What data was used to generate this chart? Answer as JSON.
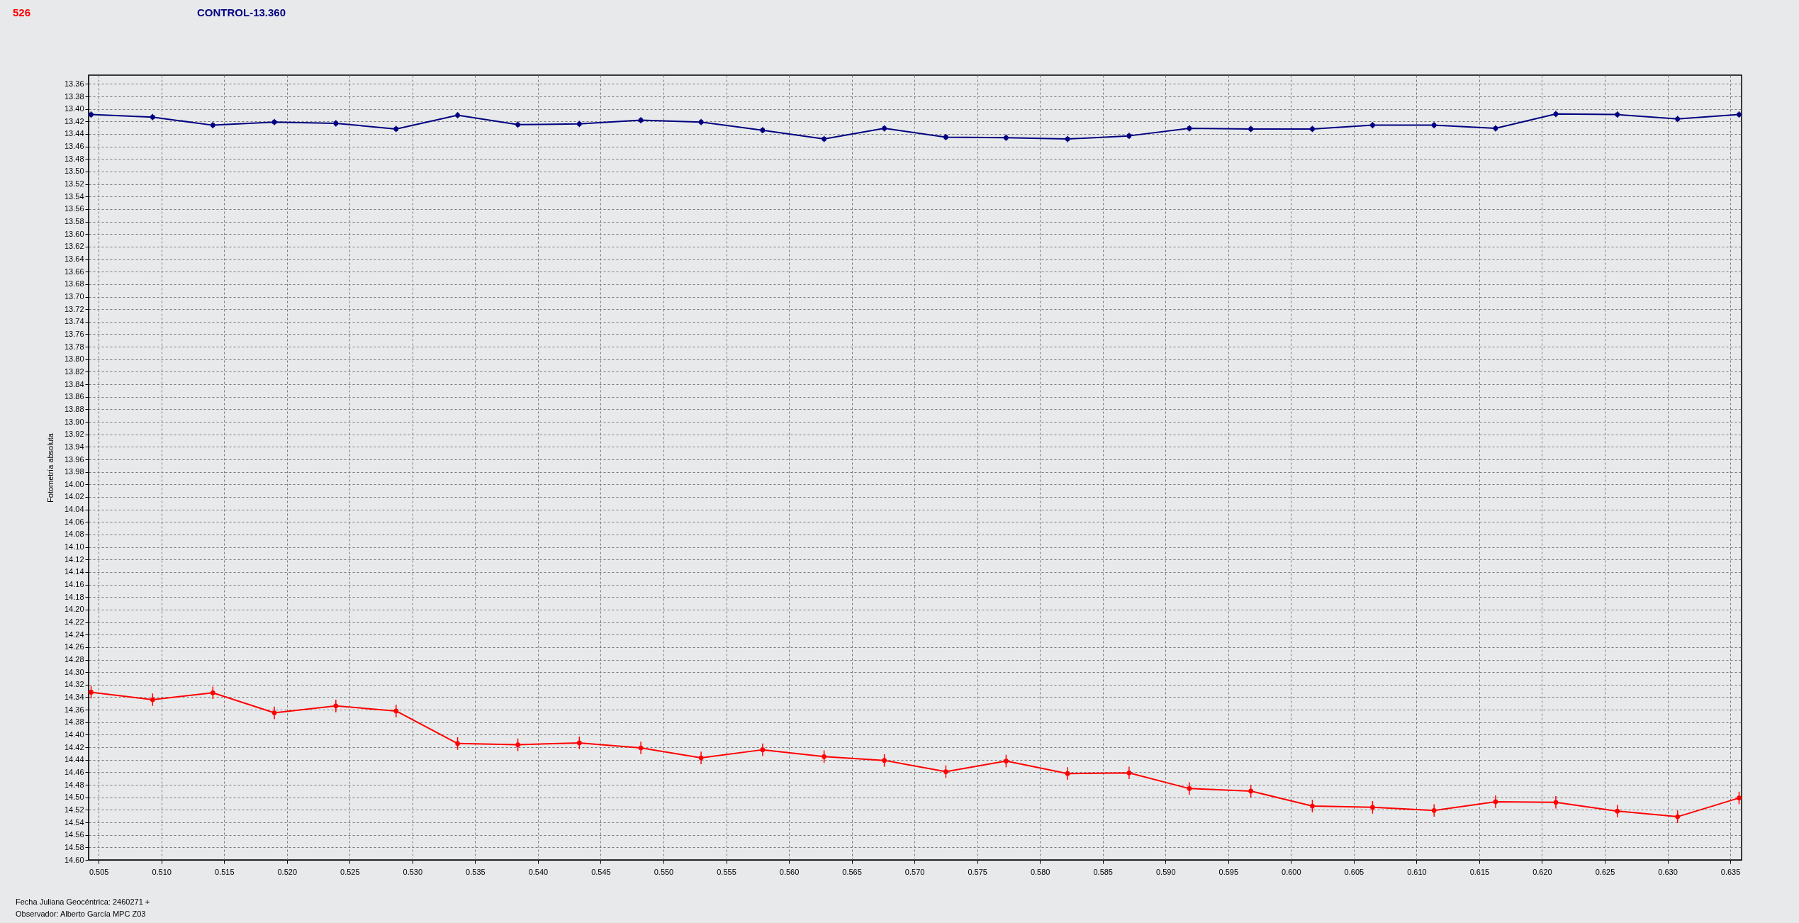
{
  "chart_data": {
    "type": "line",
    "ylabel": "Fotometría absoluta",
    "xlabel": "Fecha Juliana Geocéntrica: 2460271 +",
    "annotations": [
      "Observador: Alberto García MPC Z03"
    ],
    "x": [
      0.5044,
      0.5093,
      0.5141,
      0.519,
      0.5239,
      0.5287,
      0.5336,
      0.5384,
      0.5433,
      0.5482,
      0.553,
      0.5579,
      0.5628,
      0.5676,
      0.5725,
      0.5773,
      0.5822,
      0.5871,
      0.5919,
      0.5968,
      0.6017,
      0.6065,
      0.6114,
      0.6163,
      0.6211,
      0.626,
      0.6308,
      0.6357
    ],
    "series": [
      {
        "name": "526",
        "color": "#ff0000",
        "values": [
          14.332,
          14.344,
          14.333,
          14.365,
          14.354,
          14.362,
          14.414,
          14.416,
          14.413,
          14.421,
          14.437,
          14.424,
          14.435,
          14.441,
          14.459,
          14.442,
          14.462,
          14.461,
          14.486,
          14.49,
          14.514,
          14.516,
          14.521,
          14.507,
          14.508,
          14.522,
          14.531,
          14.501
        ],
        "errors": [
          0.01,
          0.01,
          0.01,
          0.01,
          0.01,
          0.01,
          0.01,
          0.01,
          0.01,
          0.01,
          0.01,
          0.01,
          0.01,
          0.01,
          0.01,
          0.01,
          0.01,
          0.01,
          0.01,
          0.01,
          0.01,
          0.01,
          0.01,
          0.01,
          0.01,
          0.01,
          0.01,
          0.01
        ]
      },
      {
        "name": "CONTROL-13.360",
        "color": "#000080",
        "values": [
          13.409,
          13.413,
          13.426,
          13.421,
          13.423,
          13.432,
          13.41,
          13.425,
          13.424,
          13.418,
          13.421,
          13.434,
          13.448,
          13.431,
          13.445,
          13.446,
          13.448,
          13.443,
          13.431,
          13.432,
          13.432,
          13.426,
          13.426,
          13.431,
          13.408,
          13.409,
          13.416,
          13.409
        ],
        "errors": [
          0.005,
          0.005,
          0.005,
          0.005,
          0.005,
          0.005,
          0.005,
          0.005,
          0.005,
          0.005,
          0.005,
          0.005,
          0.005,
          0.005,
          0.005,
          0.005,
          0.005,
          0.005,
          0.005,
          0.005,
          0.005,
          0.005,
          0.005,
          0.005,
          0.005,
          0.005,
          0.005,
          0.005
        ]
      }
    ],
    "xlim": [
      0.5042,
      0.6359
    ],
    "xticks": [
      0.505,
      {
        "value": 0.51,
        "label": "0.510"
      },
      0.515,
      {
        "value": 0.52,
        "label": "0.520"
      },
      0.525,
      {
        "value": 0.53,
        "label": "0.530"
      },
      0.535,
      {
        "value": 0.54,
        "label": "0.540"
      },
      0.545,
      {
        "value": 0.55,
        "label": "0.550"
      },
      0.555,
      {
        "value": 0.56,
        "label": "0.560"
      },
      0.565,
      {
        "value": 0.57,
        "label": "0.570"
      },
      0.575,
      {
        "value": 0.58,
        "label": "0.580"
      },
      0.585,
      {
        "value": 0.59,
        "label": "0.590"
      },
      0.595,
      {
        "value": 0.6,
        "label": "0.600"
      },
      0.605,
      {
        "value": 0.61,
        "label": "0.610"
      },
      0.615,
      {
        "value": 0.62,
        "label": "0.620"
      },
      0.625,
      {
        "value": 0.63,
        "label": "0.630"
      },
      0.635
    ],
    "ylim": [
      14.6,
      13.346
    ],
    "yticks": [
      13.36,
      13.38,
      {
        "value": 13.4,
        "label": "13.40"
      },
      13.42,
      13.44,
      13.46,
      13.48,
      {
        "value": 13.5,
        "label": "13.50"
      },
      13.52,
      13.54,
      13.56,
      13.58,
      {
        "value": 13.6,
        "label": "13.60"
      },
      13.62,
      13.64,
      13.66,
      13.68,
      {
        "value": 13.7,
        "label": "13.70"
      },
      13.72,
      13.74,
      13.76,
      13.78,
      {
        "value": 13.8,
        "label": "13.80"
      },
      13.82,
      13.84,
      13.86,
      13.88,
      {
        "value": 13.9,
        "label": "13.90"
      },
      13.92,
      13.94,
      13.96,
      13.98,
      {
        "value": 14.0,
        "label": "14.00"
      },
      14.02,
      14.04,
      14.06,
      14.08,
      {
        "value": 14.1,
        "label": "14.10"
      },
      14.12,
      14.14,
      14.16,
      14.18,
      {
        "value": 14.2,
        "label": "14.20"
      },
      14.22,
      14.24,
      14.26,
      14.28,
      {
        "value": 14.3,
        "label": "14.30"
      },
      14.32,
      14.34,
      14.36,
      14.38,
      {
        "value": 14.4,
        "label": "14.40"
      },
      14.42,
      14.44,
      14.46,
      14.48,
      {
        "value": 14.5,
        "label": "14.50"
      },
      14.52,
      14.54,
      14.56,
      14.58,
      {
        "value": 14.6,
        "label": "14.60"
      }
    ],
    "grid": true,
    "legend": "top left",
    "marker": "circle",
    "line_style": "solid"
  }
}
